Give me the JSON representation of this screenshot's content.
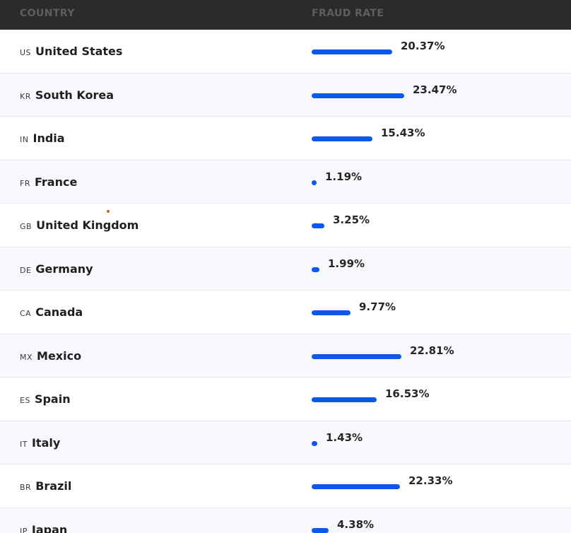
{
  "table": {
    "headers": {
      "country": "COUNTRY",
      "fraud_rate": "FRAUD RATE"
    },
    "max_rate": 23.47,
    "bar_color": "#0b57f0",
    "rows": [
      {
        "code": "US",
        "country": "United States",
        "rate_label": "20.37%",
        "rate": 20.37
      },
      {
        "code": "KR",
        "country": "South Korea",
        "rate_label": "23.47%",
        "rate": 23.47
      },
      {
        "code": "IN",
        "country": "India",
        "rate_label": "15.43%",
        "rate": 15.43
      },
      {
        "code": "FR",
        "country": "France",
        "rate_label": "1.19%",
        "rate": 1.19
      },
      {
        "code": "GB",
        "country": "United Kingdom",
        "rate_label": "3.25%",
        "rate": 3.25
      },
      {
        "code": "DE",
        "country": "Germany",
        "rate_label": "1.99%",
        "rate": 1.99
      },
      {
        "code": "CA",
        "country": "Canada",
        "rate_label": "9.77%",
        "rate": 9.77
      },
      {
        "code": "MX",
        "country": "Mexico",
        "rate_label": "22.81%",
        "rate": 22.81
      },
      {
        "code": "ES",
        "country": "Spain",
        "rate_label": "16.53%",
        "rate": 16.53
      },
      {
        "code": "IT",
        "country": "Italy",
        "rate_label": "1.43%",
        "rate": 1.43
      },
      {
        "code": "BR",
        "country": "Brazil",
        "rate_label": "22.33%",
        "rate": 22.33
      },
      {
        "code": "JP",
        "country": "Japan",
        "rate_label": "4.38%",
        "rate": 4.38
      }
    ]
  }
}
